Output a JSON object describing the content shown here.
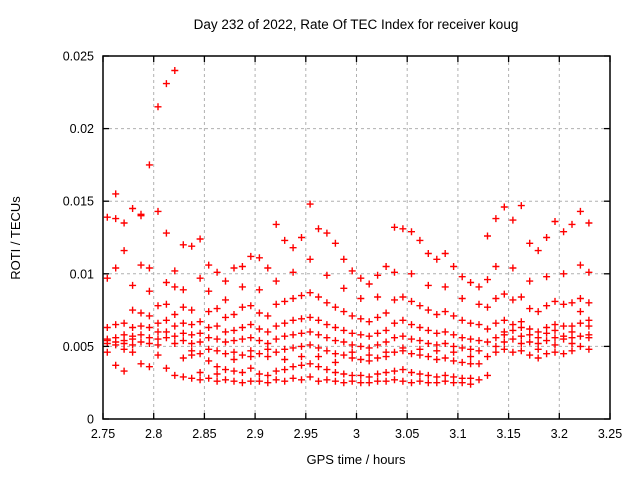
{
  "chart_data": {
    "type": "scatter",
    "title": "Day 232 of 2022, Rate Of TEC Index for receiver koug",
    "xlabel": "GPS time / hours",
    "ylabel": "ROTI / TECUs",
    "xlim": [
      2.75,
      3.25
    ],
    "ylim": [
      0,
      0.025
    ],
    "xticks": [
      2.75,
      2.8,
      2.85,
      2.9,
      2.95,
      3,
      3.05,
      3.1,
      3.15,
      3.2,
      3.25
    ],
    "xtick_labels": [
      "2.75",
      "2.8",
      "2.85",
      "2.9",
      "2.95",
      "3",
      "3.05",
      "3.1",
      "3.15",
      "3.2",
      "3.25"
    ],
    "yticks": [
      0,
      0.005,
      0.01,
      0.015,
      0.02,
      0.025
    ],
    "ytick_labels": [
      "0",
      "0.005",
      "0.01",
      "0.015",
      "0.02",
      "0.025"
    ],
    "grid": true,
    "grid_color": "#b0b0b0",
    "legend": false,
    "marker": "plus",
    "marker_color": "#ff0000",
    "series": [
      {
        "name": "ROTI",
        "columns": [
          [
            2.7542,
            [
              0.0139,
              0.0097,
              0.0063,
              0.0055,
              0.0052,
              0.0046,
              0.0054
            ]
          ],
          [
            2.7625,
            [
              0.0155,
              0.0138,
              0.0104,
              0.0065,
              0.0056,
              0.0053,
              0.0051,
              0.0037
            ]
          ],
          [
            2.7708,
            [
              0.0135,
              0.0116,
              0.0066,
              0.0058,
              0.0054,
              0.0052,
              0.0048,
              0.0033
            ]
          ],
          [
            2.7792,
            [
              0.0145,
              0.0092,
              0.0075,
              0.0063,
              0.0057,
              0.0055,
              0.0051,
              0.0046
            ]
          ],
          [
            2.7875,
            [
              0.0141,
              0.014,
              0.0106,
              0.0073,
              0.0064,
              0.0058,
              0.0053,
              0.0038
            ]
          ],
          [
            2.7958,
            [
              0.0175,
              0.0104,
              0.0088,
              0.0071,
              0.0063,
              0.0056,
              0.0052,
              0.0036
            ]
          ],
          [
            2.8042,
            [
              0.0215,
              0.0143,
              0.0078,
              0.0066,
              0.006,
              0.0055,
              0.0051,
              0.0044
            ]
          ],
          [
            2.8125,
            [
              0.0231,
              0.0128,
              0.0094,
              0.0079,
              0.0068,
              0.006,
              0.0056,
              0.0035
            ]
          ],
          [
            2.8208,
            [
              0.024,
              0.0102,
              0.0091,
              0.0072,
              0.0064,
              0.0057,
              0.0052,
              0.003
            ]
          ],
          [
            2.8292,
            [
              0.012,
              0.0089,
              0.0077,
              0.0066,
              0.0059,
              0.0054,
              0.0042,
              0.0029
            ]
          ],
          [
            2.8375,
            [
              0.0119,
              0.0075,
              0.0065,
              0.0058,
              0.0052,
              0.0047,
              0.0044,
              0.0028
            ]
          ],
          [
            2.8458,
            [
              0.0124,
              0.0097,
              0.0067,
              0.0059,
              0.0053,
              0.0045,
              0.0032,
              0.0027
            ]
          ],
          [
            2.8542,
            [
              0.0106,
              0.0088,
              0.0074,
              0.0063,
              0.0056,
              0.0048,
              0.004,
              0.0028
            ]
          ],
          [
            2.8625,
            [
              0.0101,
              0.0076,
              0.0064,
              0.0055,
              0.0047,
              0.0036,
              0.0031,
              0.0026
            ]
          ],
          [
            2.8708,
            [
              0.0095,
              0.0082,
              0.007,
              0.006,
              0.0053,
              0.0045,
              0.0034,
              0.0027
            ]
          ],
          [
            2.8792,
            [
              0.0104,
              0.0072,
              0.0061,
              0.0054,
              0.0046,
              0.0041,
              0.0033,
              0.0026
            ]
          ],
          [
            2.8875,
            [
              0.0105,
              0.0091,
              0.0077,
              0.0063,
              0.0055,
              0.0044,
              0.0032,
              0.0025
            ]
          ],
          [
            2.8958,
            [
              0.0112,
              0.0078,
              0.0065,
              0.0056,
              0.0047,
              0.0043,
              0.0035,
              0.0026
            ]
          ],
          [
            2.9042,
            [
              0.0111,
              0.0089,
              0.0073,
              0.0062,
              0.0054,
              0.0045,
              0.0031,
              0.0026
            ]
          ],
          [
            2.9125,
            [
              0.0104,
              0.0071,
              0.006,
              0.0052,
              0.0048,
              0.0043,
              0.003,
              0.0025
            ]
          ],
          [
            2.9208,
            [
              0.0134,
              0.0095,
              0.0079,
              0.0064,
              0.0055,
              0.0046,
              0.0033,
              0.0027
            ]
          ],
          [
            2.9292,
            [
              0.0123,
              0.0081,
              0.0066,
              0.0057,
              0.0048,
              0.0041,
              0.0034,
              0.0026
            ]
          ],
          [
            2.9375,
            [
              0.0118,
              0.0101,
              0.0083,
              0.0068,
              0.0058,
              0.0049,
              0.0036,
              0.0028
            ]
          ],
          [
            2.9458,
            [
              0.0125,
              0.0085,
              0.0069,
              0.0059,
              0.005,
              0.0043,
              0.0037,
              0.0027
            ]
          ],
          [
            2.9542,
            [
              0.0148,
              0.011,
              0.0087,
              0.007,
              0.006,
              0.0051,
              0.0038,
              0.0029
            ]
          ],
          [
            2.9625,
            [
              0.0131,
              0.0084,
              0.0068,
              0.0058,
              0.0049,
              0.0043,
              0.0036,
              0.0026
            ]
          ],
          [
            2.9708,
            [
              0.0128,
              0.0099,
              0.008,
              0.0065,
              0.0056,
              0.0047,
              0.0034,
              0.0027
            ]
          ],
          [
            2.9792,
            [
              0.0121,
              0.0077,
              0.0063,
              0.0054,
              0.0045,
              0.0039,
              0.0032,
              0.0026
            ]
          ],
          [
            2.9875,
            [
              0.011,
              0.009,
              0.0074,
              0.0061,
              0.0053,
              0.0044,
              0.0031,
              0.0025
            ]
          ],
          [
            2.9958,
            [
              0.0102,
              0.0071,
              0.0059,
              0.0051,
              0.0046,
              0.0042,
              0.003,
              0.0026
            ]
          ],
          [
            3.0042,
            [
              0.0097,
              0.0083,
              0.0069,
              0.0058,
              0.005,
              0.0041,
              0.003,
              0.0025
            ]
          ],
          [
            3.0125,
            [
              0.0093,
              0.0067,
              0.0057,
              0.0049,
              0.0044,
              0.004,
              0.0029,
              0.0025
            ]
          ],
          [
            3.0208,
            [
              0.0099,
              0.0084,
              0.007,
              0.0059,
              0.0051,
              0.0042,
              0.0031,
              0.0026
            ]
          ],
          [
            3.0292,
            [
              0.0105,
              0.0073,
              0.0061,
              0.0053,
              0.0046,
              0.0043,
              0.0032,
              0.0026
            ]
          ],
          [
            3.0375,
            [
              0.0132,
              0.0101,
              0.0082,
              0.0066,
              0.0056,
              0.0046,
              0.0033,
              0.0027
            ]
          ],
          [
            3.0458,
            [
              0.0131,
              0.0084,
              0.0068,
              0.0057,
              0.0049,
              0.0047,
              0.0034,
              0.0026
            ]
          ],
          [
            3.0542,
            [
              0.0129,
              0.01,
              0.0081,
              0.0065,
              0.0055,
              0.0045,
              0.0032,
              0.0025
            ]
          ],
          [
            3.0625,
            [
              0.0123,
              0.0078,
              0.0063,
              0.0054,
              0.0048,
              0.0044,
              0.0031,
              0.0026
            ]
          ],
          [
            3.0708,
            [
              0.0114,
              0.0092,
              0.0075,
              0.0061,
              0.0052,
              0.0043,
              0.003,
              0.0025
            ]
          ],
          [
            3.0792,
            [
              0.011,
              0.0072,
              0.0059,
              0.0051,
              0.0047,
              0.0041,
              0.0029,
              0.0025
            ]
          ],
          [
            3.0875,
            [
              0.0114,
              0.0091,
              0.0074,
              0.006,
              0.0052,
              0.0042,
              0.003,
              0.0026
            ]
          ],
          [
            3.0958,
            [
              0.0105,
              0.0071,
              0.0058,
              0.005,
              0.0046,
              0.004,
              0.0029,
              0.0025
            ]
          ],
          [
            3.1042,
            [
              0.0098,
              0.0083,
              0.0068,
              0.0056,
              0.0049,
              0.0039,
              0.0028,
              0.0025
            ]
          ],
          [
            3.1125,
            [
              0.0094,
              0.0066,
              0.0055,
              0.0048,
              0.0043,
              0.0038,
              0.0028,
              0.0024
            ]
          ],
          [
            3.1208,
            [
              0.0091,
              0.0079,
              0.0065,
              0.0054,
              0.0047,
              0.0038,
              0.0027
            ]
          ],
          [
            3.1292,
            [
              0.0126,
              0.0096,
              0.0077,
              0.0062,
              0.0053,
              0.0043,
              0.003
            ]
          ],
          [
            3.1375,
            [
              0.0138,
              0.0105,
              0.0083,
              0.0066,
              0.0056,
              0.0046,
              0.005
            ]
          ],
          [
            3.1458,
            [
              0.0146,
              0.0086,
              0.0068,
              0.0058,
              0.0048,
              0.0053,
              0.006
            ]
          ],
          [
            3.1542,
            [
              0.0137,
              0.0104,
              0.0082,
              0.0065,
              0.0055,
              0.0046,
              0.0061
            ]
          ],
          [
            3.1625,
            [
              0.0147,
              0.0084,
              0.0067,
              0.0057,
              0.0052,
              0.0047,
              0.0063
            ]
          ],
          [
            3.1708,
            [
              0.0121,
              0.0095,
              0.0076,
              0.0062,
              0.0053,
              0.0044,
              0.0058
            ]
          ],
          [
            3.1792,
            [
              0.0116,
              0.0074,
              0.006,
              0.0052,
              0.0048,
              0.0042,
              0.0056
            ]
          ],
          [
            3.1875,
            [
              0.0125,
              0.0098,
              0.0078,
              0.0063,
              0.0054,
              0.0045,
              0.0059
            ]
          ],
          [
            3.1958,
            [
              0.0136,
              0.0081,
              0.0065,
              0.0056,
              0.0051,
              0.0046,
              0.0061
            ]
          ],
          [
            3.2042,
            [
              0.0129,
              0.01,
              0.0079,
              0.0064,
              0.0055,
              0.0045,
              0.0057
            ]
          ],
          [
            3.2125,
            [
              0.0134,
              0.008,
              0.0064,
              0.0056,
              0.0052,
              0.0047,
              0.006
            ]
          ],
          [
            3.2208,
            [
              0.0143,
              0.0106,
              0.0083,
              0.0066,
              0.0057,
              0.005,
              0.0074
            ]
          ],
          [
            3.2292,
            [
              0.0135,
              0.0101,
              0.008,
              0.0064,
              0.0056,
              0.0048,
              0.0068,
              0.0058
            ]
          ]
        ]
      }
    ]
  }
}
